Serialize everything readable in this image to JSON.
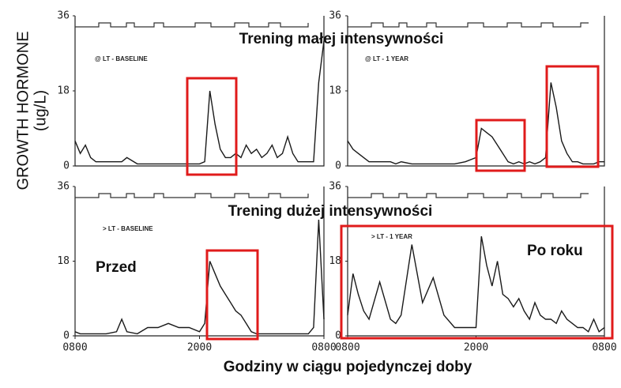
{
  "y_label": "GROWTH HORMONE",
  "y_unit": "(ug/L)",
  "x_label": "Godziny w ciągu pojedynczej doby",
  "annotations": {
    "top_band": "Trening małej intensywności",
    "bottom_band": "Trening dużej intensywności",
    "before": "Przed",
    "after": "Po roku"
  },
  "chart_data": [
    {
      "type": "line",
      "title": "@ LT - BASELINE",
      "color": "#1a1a1a",
      "xlim": [
        8,
        32
      ],
      "ylim": [
        0,
        36
      ],
      "yticks": [
        0,
        18,
        36
      ],
      "x": [
        8,
        8.5,
        9,
        9.5,
        10,
        11,
        12,
        12.5,
        13,
        14,
        15,
        16,
        17,
        18,
        19,
        20,
        20.5,
        21,
        21.5,
        22,
        22.5,
        23,
        23.5,
        24,
        24.5,
        25,
        25.5,
        26,
        26.5,
        27,
        27.5,
        28,
        28.5,
        29,
        29.5,
        30,
        30.5,
        31,
        31.5,
        32
      ],
      "values": [
        6,
        3,
        5,
        2,
        1,
        1,
        1,
        1,
        2,
        0.5,
        0.5,
        0.5,
        0.5,
        0.5,
        0.5,
        0.5,
        1,
        18,
        10,
        4,
        2,
        2,
        3,
        2,
        5,
        3,
        4,
        2,
        3,
        5,
        2,
        3,
        7,
        3,
        1,
        1,
        1,
        1,
        20,
        30
      ]
    },
    {
      "type": "line",
      "title": "@ LT - 1 YEAR",
      "color": "#1a1a1a",
      "xlim": [
        8,
        32
      ],
      "ylim": [
        0,
        36
      ],
      "yticks": [
        0,
        18,
        36
      ],
      "x": [
        8,
        8.5,
        9,
        9.5,
        10,
        11,
        12,
        12.5,
        13,
        14,
        15,
        16,
        17,
        18,
        19,
        20,
        20.5,
        21,
        21.5,
        22,
        22.5,
        23,
        23.5,
        24,
        24.5,
        25,
        25.5,
        26,
        26.5,
        27,
        27.5,
        28,
        28.5,
        29,
        29.5,
        30,
        30.5,
        31,
        31.5,
        32
      ],
      "values": [
        6,
        4,
        3,
        2,
        1,
        1,
        1,
        0.5,
        1,
        0.5,
        0.5,
        0.5,
        0.5,
        0.5,
        1,
        2,
        9,
        8,
        7,
        5,
        3,
        1,
        0.5,
        1,
        0.5,
        1,
        0.5,
        1,
        2,
        20,
        14,
        6,
        3,
        1,
        1,
        0.5,
        0.5,
        0.5,
        1,
        1
      ]
    },
    {
      "type": "line",
      "title": "> LT - BASELINE",
      "color": "#1a1a1a",
      "xlim": [
        8,
        32
      ],
      "ylim": [
        0,
        36
      ],
      "yticks": [
        0,
        18,
        36
      ],
      "xticks": [
        {
          "value": 8,
          "label": "0800"
        },
        {
          "value": 20,
          "label": "2000"
        },
        {
          "value": 32,
          "label": "0800"
        }
      ],
      "x": [
        8,
        8.5,
        9,
        9.5,
        10,
        11,
        12,
        12.5,
        13,
        14,
        15,
        16,
        17,
        18,
        19,
        20,
        20.5,
        21,
        21.5,
        22,
        22.5,
        23,
        23.5,
        24,
        24.5,
        25,
        25.5,
        26,
        26.5,
        27,
        27.5,
        28,
        28.5,
        29,
        29.5,
        30,
        30.5,
        31,
        31.5,
        32
      ],
      "values": [
        1,
        0.5,
        0.5,
        0.5,
        0.5,
        0.5,
        1,
        4,
        1,
        0.5,
        2,
        2,
        3,
        2,
        2,
        1,
        3,
        18,
        15,
        12,
        10,
        8,
        6,
        5,
        3,
        1,
        0.5,
        0.5,
        0.5,
        0.5,
        0.5,
        0.5,
        0.5,
        0.5,
        0.5,
        0.5,
        0.5,
        2,
        28,
        4
      ]
    },
    {
      "type": "line",
      "title": "> LT - 1 YEAR",
      "color": "#1a1a1a",
      "xlim": [
        8,
        32
      ],
      "ylim": [
        0,
        36
      ],
      "yticks": [
        0,
        18,
        36
      ],
      "xticks": [
        {
          "value": 8,
          "label": "0800"
        },
        {
          "value": 20,
          "label": "2000"
        },
        {
          "value": 32,
          "label": "0800"
        }
      ],
      "x": [
        8,
        8.5,
        9,
        9.5,
        10,
        11,
        12,
        12.5,
        13,
        14,
        15,
        16,
        17,
        18,
        19,
        20,
        20.5,
        21,
        21.5,
        22,
        22.5,
        23,
        23.5,
        24,
        24.5,
        25,
        25.5,
        26,
        26.5,
        27,
        27.5,
        28,
        28.5,
        29,
        29.5,
        30,
        30.5,
        31,
        31.5,
        32
      ],
      "values": [
        5,
        15,
        10,
        6,
        4,
        13,
        4,
        3,
        5,
        22,
        8,
        14,
        5,
        2,
        2,
        2,
        24,
        17,
        12,
        18,
        10,
        9,
        7,
        9,
        6,
        4,
        8,
        5,
        4,
        4,
        3,
        6,
        4,
        3,
        2,
        2,
        1,
        4,
        1,
        2
      ]
    }
  ]
}
